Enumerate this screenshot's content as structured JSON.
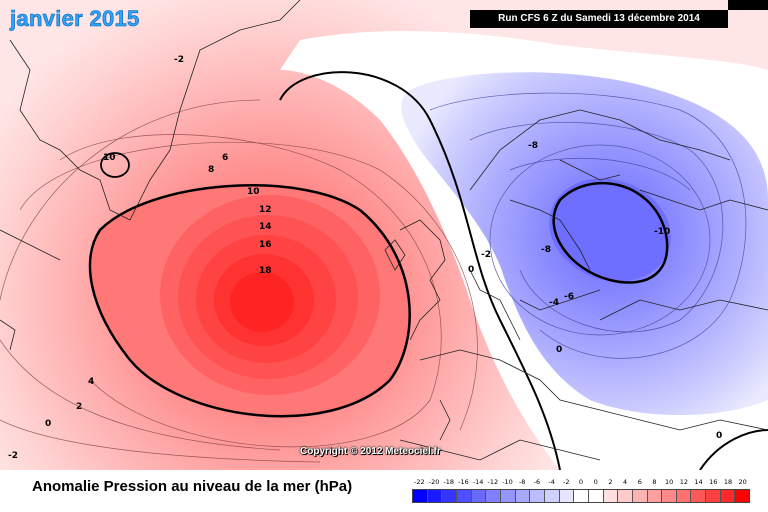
{
  "map": {
    "month_title": "janvier 2015",
    "run_info": "Run CFS 6 Z du Samedi 13 décembre 2014",
    "copyright": "Copyright © 2012 Meteociel.fr",
    "contour_labels": [
      "-2",
      "10",
      "6",
      "8",
      "10",
      "12",
      "14",
      "16",
      "18",
      "4",
      "2",
      "0",
      "-2",
      "-8",
      "-8",
      "-10",
      "-6",
      "-4",
      "-2",
      "0",
      "0",
      "0"
    ],
    "colors": {
      "positive_max": "#ff2020",
      "negative_max": "#6060ff",
      "neutral": "#ffffff"
    }
  },
  "legend": {
    "title": "Anomalie Pression au niveau de la mer (hPa)",
    "labels": [
      "-22",
      "-20",
      "-18",
      "-16",
      "-14",
      "-12",
      "-10",
      "-8",
      "-6",
      "-4",
      "-2",
      "0",
      "0",
      "2",
      "4",
      "6",
      "8",
      "10",
      "12",
      "14",
      "16",
      "18",
      "20"
    ],
    "colors": [
      "#0000ff",
      "#1a1aff",
      "#3535ff",
      "#4f4fff",
      "#6a6aff",
      "#8080ff",
      "#9494ff",
      "#a8a8ff",
      "#bcbcff",
      "#d0d0ff",
      "#e6e6ff",
      "#ffffff",
      "#ffffff",
      "#ffe0e0",
      "#ffcaca",
      "#ffb4b4",
      "#ff9e9e",
      "#ff8888",
      "#ff7070",
      "#ff5858",
      "#ff4040",
      "#ff2828",
      "#ff0000"
    ]
  }
}
